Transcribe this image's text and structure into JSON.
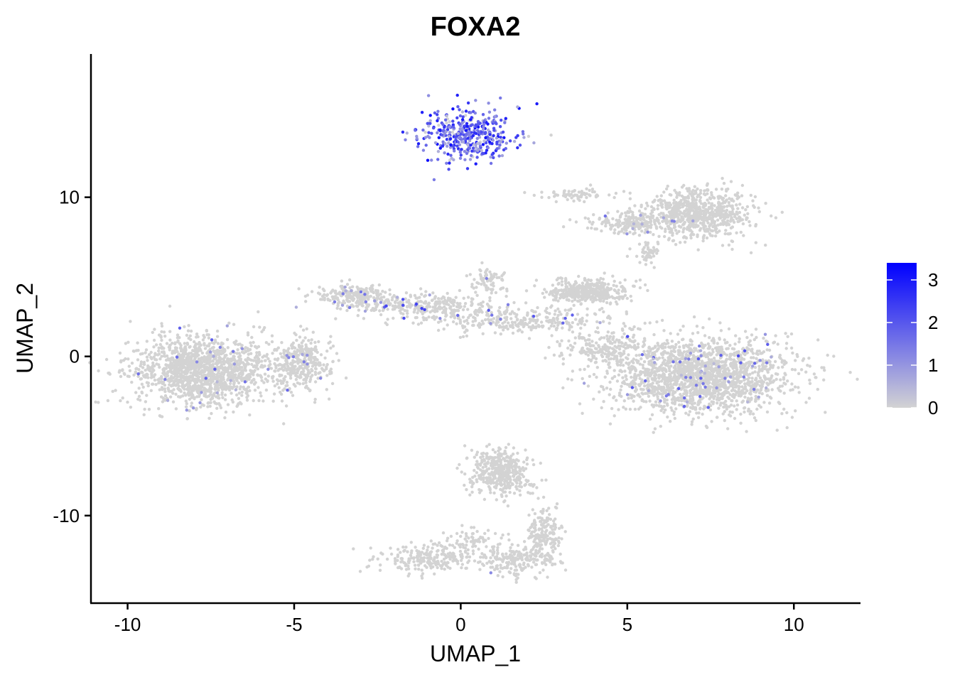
{
  "chart_data": {
    "type": "scatter",
    "title": "FOXA2",
    "xlabel": "UMAP_1",
    "ylabel": "UMAP_2",
    "xlim": [
      -11.1,
      12.0
    ],
    "ylim": [
      -15.5,
      19.0
    ],
    "x_ticks": [
      -10,
      -5,
      0,
      5,
      10
    ],
    "x_tick_labels": [
      "-10",
      "-5",
      "0",
      "5",
      "10"
    ],
    "y_ticks": [
      -10,
      0,
      10
    ],
    "y_tick_labels": [
      "-10",
      "0",
      "10"
    ],
    "grid": false,
    "point_color_low": "#d3d3d3",
    "point_color_high": "#0000ff",
    "legend": {
      "placement": "right",
      "type": "colorbar",
      "range": [
        0,
        3.4
      ],
      "ticks": [
        0,
        1,
        2,
        3
      ],
      "tick_labels": [
        "0",
        "1",
        "2",
        "3"
      ]
    },
    "clusters": [
      {
        "cx": 0.2,
        "cy": 14.0,
        "sx": 0.9,
        "sy": 1.0,
        "n": 420,
        "expr_frac": 0.92,
        "expr_max": 3.2
      },
      {
        "cx": -7.8,
        "cy": -0.9,
        "sx": 1.3,
        "sy": 1.35,
        "n": 1500,
        "expr_frac": 0.02,
        "expr_max": 2.0
      },
      {
        "cx": -4.8,
        "cy": -0.4,
        "sx": 0.6,
        "sy": 1.0,
        "n": 350,
        "expr_frac": 0.02,
        "expr_max": 2.0
      },
      {
        "cx": -3.2,
        "cy": 3.8,
        "sx": 0.7,
        "sy": 0.45,
        "n": 220,
        "expr_frac": 0.04,
        "expr_max": 2.0
      },
      {
        "cx": -1.0,
        "cy": 3.2,
        "sx": 1.4,
        "sy": 0.45,
        "n": 300,
        "expr_frac": 0.03,
        "expr_max": 2.5
      },
      {
        "cx": 1.8,
        "cy": 2.3,
        "sx": 1.6,
        "sy": 0.5,
        "n": 300,
        "expr_frac": 0.03,
        "expr_max": 2.0
      },
      {
        "cx": 0.8,
        "cy": 4.8,
        "sx": 0.35,
        "sy": 0.5,
        "n": 80,
        "expr_frac": 0.02,
        "expr_max": 2.0
      },
      {
        "cx": 7.2,
        "cy": -1.2,
        "sx": 1.7,
        "sy": 1.5,
        "n": 1900,
        "expr_frac": 0.03,
        "expr_max": 2.2
      },
      {
        "cx": 4.3,
        "cy": 0.5,
        "sx": 0.8,
        "sy": 0.6,
        "n": 200,
        "expr_frac": 0.02,
        "expr_max": 2.0
      },
      {
        "cx": 3.8,
        "cy": 4.1,
        "sx": 0.7,
        "sy": 0.45,
        "n": 420,
        "expr_frac": 0.0,
        "expr_max": 0
      },
      {
        "cx": 7.2,
        "cy": 9.0,
        "sx": 1.0,
        "sy": 1.0,
        "n": 700,
        "expr_frac": 0.0,
        "expr_max": 0
      },
      {
        "cx": 5.2,
        "cy": 8.4,
        "sx": 0.9,
        "sy": 0.4,
        "n": 220,
        "expr_frac": 0.03,
        "expr_max": 2.0
      },
      {
        "cx": 3.5,
        "cy": 10.2,
        "sx": 0.8,
        "sy": 0.25,
        "n": 70,
        "expr_frac": 0.0,
        "expr_max": 0
      },
      {
        "cx": 5.6,
        "cy": 6.5,
        "sx": 0.25,
        "sy": 0.6,
        "n": 50,
        "expr_frac": 0.0,
        "expr_max": 0
      },
      {
        "cx": 1.2,
        "cy": -7.3,
        "sx": 0.55,
        "sy": 0.9,
        "n": 420,
        "expr_frac": 0.0,
        "expr_max": 0
      },
      {
        "cx": 2.5,
        "cy": -11.3,
        "sx": 0.35,
        "sy": 1.2,
        "n": 200,
        "expr_frac": 0.0,
        "expr_max": 0
      },
      {
        "cx": 1.6,
        "cy": -12.8,
        "sx": 0.7,
        "sy": 0.6,
        "n": 170,
        "expr_frac": 0.01,
        "expr_max": 1.5
      },
      {
        "cx": -1.0,
        "cy": -12.7,
        "sx": 0.9,
        "sy": 0.55,
        "n": 220,
        "expr_frac": 0.0,
        "expr_max": 0
      },
      {
        "cx": 0.3,
        "cy": -11.6,
        "sx": 0.6,
        "sy": 0.5,
        "n": 80,
        "expr_frac": 0.0,
        "expr_max": 0
      }
    ]
  }
}
